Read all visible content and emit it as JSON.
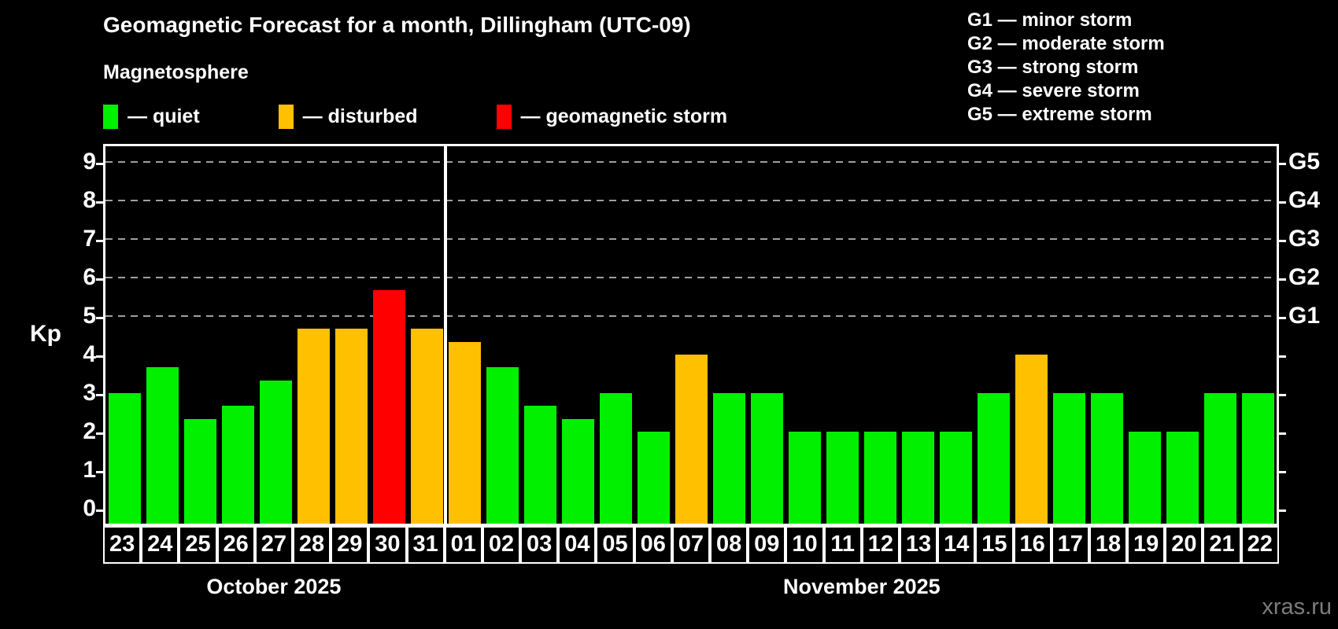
{
  "title": "Geomagnetic Forecast for a month, Dillingham (UTC-09)",
  "subtitle": "Magnetosphere",
  "watermark": "xras.ru",
  "colors": {
    "quiet": "#00f000",
    "disturbed": "#ffc000",
    "storm": "#ff0000",
    "grid": "#a0a0a0",
    "axis": "#ffffff",
    "watermark": "#7d7d7d"
  },
  "legend": [
    {
      "level": "quiet",
      "label": "— quiet"
    },
    {
      "level": "disturbed",
      "label": "— disturbed"
    },
    {
      "level": "storm",
      "label": "— geomagnetic storm"
    }
  ],
  "g_legend": [
    "G1 — minor storm",
    "G2 — moderate storm",
    "G3 — strong storm",
    "G4 — severe storm",
    "G5 — extreme storm"
  ],
  "chart_data": {
    "type": "bar",
    "title": "Geomagnetic Forecast for a month, Dillingham (UTC-09)",
    "ylabel": "Kp",
    "ylim": [
      0,
      9
    ],
    "yticks": [
      0,
      1,
      2,
      3,
      4,
      5,
      6,
      7,
      8,
      9
    ],
    "gridlines_at": [
      5,
      6,
      7,
      8,
      9
    ],
    "grid": "dashed",
    "legend_position": "top",
    "right_axis_labels": [
      {
        "label": "G1",
        "kp": 5
      },
      {
        "label": "G2",
        "kp": 6
      },
      {
        "label": "G3",
        "kp": 7
      },
      {
        "label": "G4",
        "kp": 8
      },
      {
        "label": "G5",
        "kp": 9
      }
    ],
    "months": [
      {
        "label": "October 2025",
        "days": 9
      },
      {
        "label": "November 2025",
        "days": 22
      }
    ],
    "points": [
      {
        "day": "23",
        "kp": 3.0,
        "level": "quiet"
      },
      {
        "day": "24",
        "kp": 3.67,
        "level": "quiet"
      },
      {
        "day": "25",
        "kp": 2.33,
        "level": "quiet"
      },
      {
        "day": "26",
        "kp": 2.67,
        "level": "quiet"
      },
      {
        "day": "27",
        "kp": 3.33,
        "level": "quiet"
      },
      {
        "day": "28",
        "kp": 4.67,
        "level": "disturbed"
      },
      {
        "day": "29",
        "kp": 4.67,
        "level": "disturbed"
      },
      {
        "day": "30",
        "kp": 5.67,
        "level": "storm"
      },
      {
        "day": "31",
        "kp": 4.67,
        "level": "disturbed"
      },
      {
        "day": "01",
        "kp": 4.33,
        "level": "disturbed"
      },
      {
        "day": "02",
        "kp": 3.67,
        "level": "quiet"
      },
      {
        "day": "03",
        "kp": 2.67,
        "level": "quiet"
      },
      {
        "day": "04",
        "kp": 2.33,
        "level": "quiet"
      },
      {
        "day": "05",
        "kp": 3.0,
        "level": "quiet"
      },
      {
        "day": "06",
        "kp": 2.0,
        "level": "quiet"
      },
      {
        "day": "07",
        "kp": 4.0,
        "level": "disturbed"
      },
      {
        "day": "08",
        "kp": 3.0,
        "level": "quiet"
      },
      {
        "day": "09",
        "kp": 3.0,
        "level": "quiet"
      },
      {
        "day": "10",
        "kp": 2.0,
        "level": "quiet"
      },
      {
        "day": "11",
        "kp": 2.0,
        "level": "quiet"
      },
      {
        "day": "12",
        "kp": 2.0,
        "level": "quiet"
      },
      {
        "day": "13",
        "kp": 2.0,
        "level": "quiet"
      },
      {
        "day": "14",
        "kp": 2.0,
        "level": "quiet"
      },
      {
        "day": "15",
        "kp": 3.0,
        "level": "quiet"
      },
      {
        "day": "16",
        "kp": 4.0,
        "level": "disturbed"
      },
      {
        "day": "17",
        "kp": 3.0,
        "level": "quiet"
      },
      {
        "day": "18",
        "kp": 3.0,
        "level": "quiet"
      },
      {
        "day": "19",
        "kp": 2.0,
        "level": "quiet"
      },
      {
        "day": "20",
        "kp": 2.0,
        "level": "quiet"
      },
      {
        "day": "21",
        "kp": 3.0,
        "level": "quiet"
      },
      {
        "day": "22",
        "kp": 3.0,
        "level": "quiet"
      }
    ]
  }
}
